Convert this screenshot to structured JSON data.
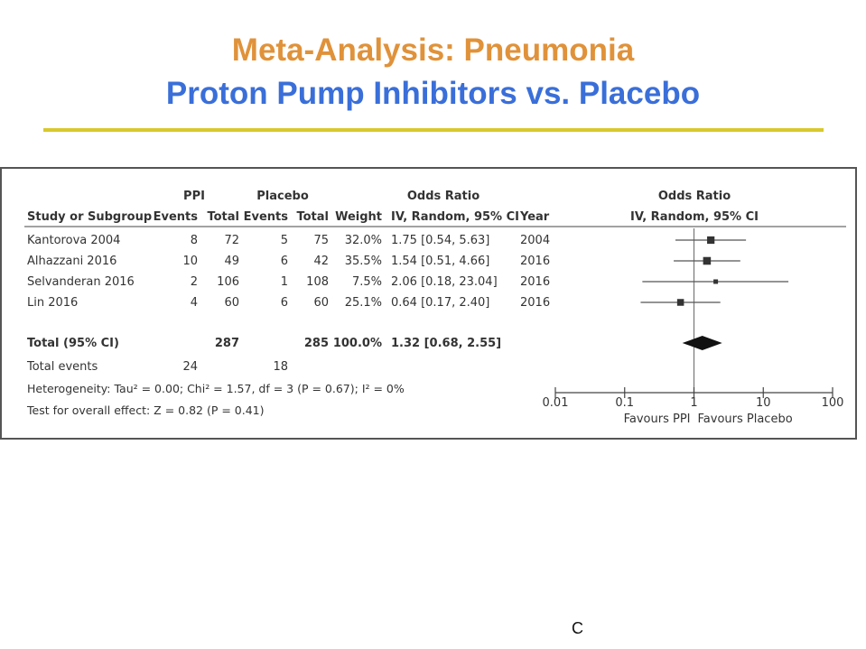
{
  "slide": {
    "title_line1": "Meta-Analysis: Pneumonia",
    "title_line2": "Proton Pump Inhibitors vs. Placebo",
    "footer_fragment": "C"
  },
  "colors": {
    "title1": "#e0923a",
    "title2": "#3a6fd9",
    "rule": "#d8c82c"
  },
  "table": {
    "group_headers": {
      "ppi": "PPI",
      "placebo": "Placebo",
      "or": "Odds Ratio",
      "plot": "Odds Ratio"
    },
    "columns": {
      "study": "Study or Subgroup",
      "ppi_events": "Events",
      "ppi_total": "Total",
      "pl_events": "Events",
      "pl_total": "Total",
      "weight": "Weight",
      "or": "IV, Random, 95% CI",
      "year": "Year",
      "plot": "IV, Random, 95% CI"
    },
    "rows": [
      {
        "study": "Kantorova 2004",
        "ppi_events": "8",
        "ppi_total": "72",
        "pl_events": "5",
        "pl_total": "75",
        "weight": "32.0%",
        "or": "1.75 [0.54, 5.63]",
        "year": "2004"
      },
      {
        "study": "Alhazzani 2016",
        "ppi_events": "10",
        "ppi_total": "49",
        "pl_events": "6",
        "pl_total": "42",
        "weight": "35.5%",
        "or": "1.54 [0.51, 4.66]",
        "year": "2016"
      },
      {
        "study": "Selvanderan 2016",
        "ppi_events": "2",
        "ppi_total": "106",
        "pl_events": "1",
        "pl_total": "108",
        "weight": "7.5%",
        "or": "2.06 [0.18, 23.04]",
        "year": "2016"
      },
      {
        "study": "Lin 2016",
        "ppi_events": "4",
        "ppi_total": "60",
        "pl_events": "6",
        "pl_total": "60",
        "weight": "25.1%",
        "or": "0.64 [0.17, 2.40]",
        "year": "2016"
      }
    ],
    "total": {
      "label": "Total (95% CI)",
      "ppi_total": "287",
      "pl_total": "285",
      "weight": "100.0%",
      "or": "1.32 [0.68, 2.55]"
    },
    "total_events": {
      "label": "Total events",
      "ppi": "24",
      "placebo": "18"
    },
    "heterogeneity": "Heterogeneity: Tau² = 0.00; Chi² = 1.57, df = 3 (P = 0.67); I² = 0%",
    "overall_effect": "Test for overall effect: Z = 0.82 (P = 0.41)"
  },
  "chart_data": {
    "type": "scatter",
    "subtype": "forest-plot",
    "x_scale": "log",
    "xlim": [
      0.01,
      100
    ],
    "xticks": [
      0.01,
      0.1,
      1,
      10,
      100
    ],
    "xtick_labels": [
      "0.01",
      "0.1",
      "1",
      "10",
      "100"
    ],
    "x_favours_left": "Favours PPI",
    "x_favours_right": "Favours Placebo",
    "reference_line": 1,
    "studies": [
      {
        "name": "Kantorova 2004",
        "or": 1.75,
        "lo": 0.54,
        "hi": 5.63,
        "weight": 32.0
      },
      {
        "name": "Alhazzani 2016",
        "or": 1.54,
        "lo": 0.51,
        "hi": 4.66,
        "weight": 35.5
      },
      {
        "name": "Selvanderan 2016",
        "or": 2.06,
        "lo": 0.18,
        "hi": 23.04,
        "weight": 7.5
      },
      {
        "name": "Lin 2016",
        "or": 0.64,
        "lo": 0.17,
        "hi": 2.4,
        "weight": 25.1
      }
    ],
    "pooled": {
      "or": 1.32,
      "lo": 0.68,
      "hi": 2.55
    }
  }
}
